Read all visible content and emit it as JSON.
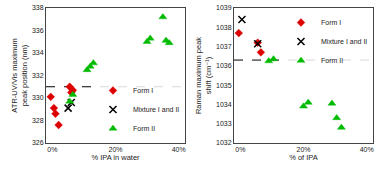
{
  "chart_data": [
    {
      "type": "scatter",
      "xlabel": "% IPA in water",
      "ylabel": "ATR-UV/Vis maximum\npeak position (nm)",
      "xlim": [
        -2,
        42
      ],
      "ylim": [
        326,
        338
      ],
      "xticks": [
        {
          "value": 0,
          "label": "0%"
        },
        {
          "value": 20,
          "label": "20%"
        },
        {
          "value": 40,
          "label": "40%"
        }
      ],
      "yticks": [
        326,
        328,
        330,
        332,
        334,
        336,
        338
      ],
      "grid": false,
      "legend": "lower right",
      "hline": {
        "y": 331.0,
        "line_style": "dashed",
        "color": "black"
      },
      "series": [
        {
          "name": "Form I",
          "color": "#dd0000",
          "marker": "diamond",
          "x": [
            -0.5,
            0.5,
            1.0,
            2.0,
            5.5,
            6.0,
            6.5
          ],
          "values": [
            330.1,
            329.1,
            328.6,
            327.6,
            331.0,
            330.5,
            330.7
          ]
        },
        {
          "name": "Mixture I and II",
          "color": "black",
          "marker": "x",
          "x": [
            5.0,
            6.0
          ],
          "values": [
            329.1,
            329.6
          ]
        },
        {
          "name": "Form II",
          "color": "#00bb00",
          "marker": "triangle-up",
          "x": [
            5.5,
            6.5,
            11.0,
            12.0,
            13.0,
            30.0,
            31.0,
            35.0,
            36.0,
            37.0
          ],
          "values": [
            329.7,
            330.3,
            332.5,
            332.8,
            333.1,
            335.0,
            335.3,
            337.2,
            335.1,
            334.9
          ]
        }
      ]
    },
    {
      "type": "scatter",
      "xlabel": "% of IPA",
      "ylabel": "Raman maximum peak\nshift (cm⁻¹)",
      "xlim": [
        -2,
        42
      ],
      "ylim": [
        1032,
        1039
      ],
      "xticks": [
        {
          "value": 0,
          "label": "0%"
        },
        {
          "value": 20,
          "label": "20%"
        },
        {
          "value": 40,
          "label": "40%"
        }
      ],
      "yticks": [
        1032,
        1033,
        1034,
        1035,
        1036,
        1037,
        1038,
        1039
      ],
      "grid": false,
      "legend": "upper right",
      "hline": {
        "y": 1036.3,
        "line_style": "dashed",
        "color": "black"
      },
      "series": [
        {
          "name": "Form I",
          "color": "#dd0000",
          "marker": "diamond",
          "x": [
            -0.5,
            5.5,
            6.5
          ],
          "values": [
            1037.7,
            1037.2,
            1036.7
          ]
        },
        {
          "name": "Mixture I and II",
          "color": "black",
          "marker": "x",
          "x": [
            0.5,
            5.5
          ],
          "values": [
            1038.4,
            1037.15
          ]
        },
        {
          "name": "Form II",
          "color": "#00bb00",
          "marker": "triangle-up",
          "x": [
            9.0,
            10.5,
            20.0,
            21.5,
            29.0,
            30.5,
            32.0
          ],
          "values": [
            1036.25,
            1036.35,
            1033.9,
            1034.1,
            1034.05,
            1033.3,
            1032.8
          ]
        }
      ]
    }
  ]
}
